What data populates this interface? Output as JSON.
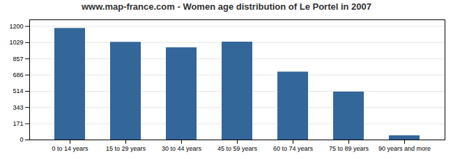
{
  "chart_data": {
    "type": "bar",
    "title": "www.map-france.com - Women age distribution of Le Portel in 2007",
    "categories": [
      "0 to 14 years",
      "15 to 29 years",
      "30 to 44 years",
      "45 to 59 years",
      "60 to 74 years",
      "75 to 89 years",
      "90 years and more"
    ],
    "values": [
      1180,
      1033,
      975,
      1035,
      718,
      507,
      45
    ],
    "color": "#336699",
    "ylim": [
      0,
      1270
    ],
    "yticks": [
      0,
      171,
      343,
      514,
      686,
      857,
      1029,
      1200
    ],
    "grid": true
  }
}
